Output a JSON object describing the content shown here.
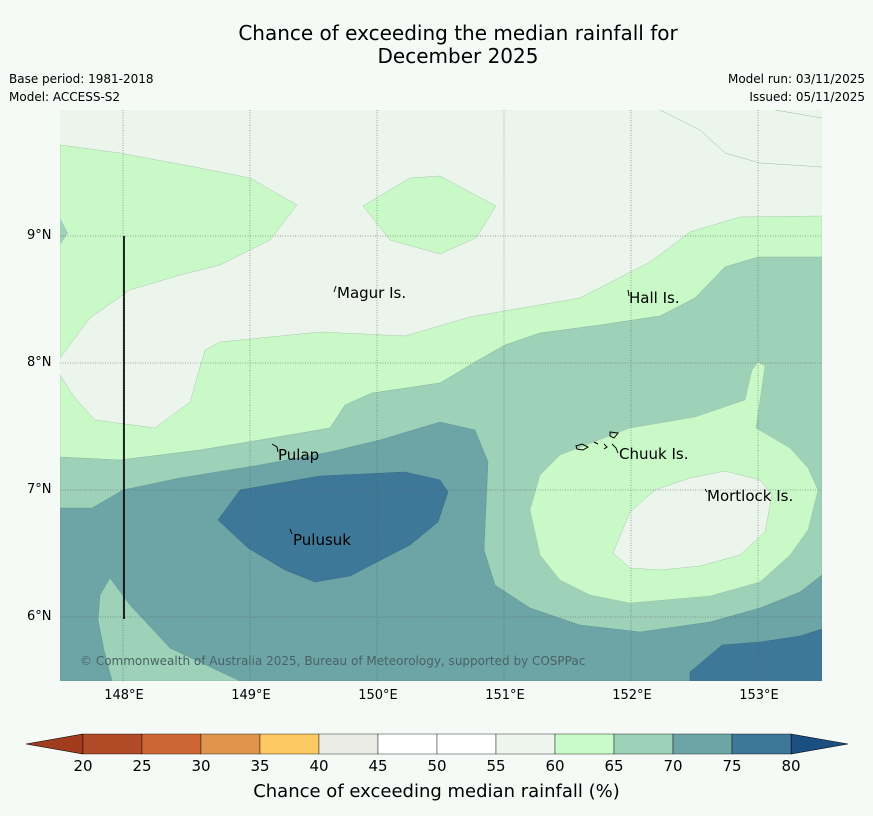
{
  "title_line1": "Chance of exceeding the median rainfall for",
  "title_line2": "December 2025",
  "meta": {
    "base_period": "Base period: 1981-2018",
    "model": "Model: ACCESS-S2",
    "model_run": "Model run: 03/11/2025",
    "issued": "Issued: 05/11/2025"
  },
  "lat_labels": [
    "9°N",
    "8°N",
    "7°N",
    "6°N"
  ],
  "lon_labels": [
    "148°E",
    "149°E",
    "150°E",
    "151°E",
    "152°E",
    "153°E"
  ],
  "places": {
    "magur": "Magur Is.",
    "hall": "Hall Is.",
    "pulap": "Pulap",
    "chuuk": "Chuuk Is.",
    "mortlock": "Mortlock Is.",
    "pulusuk": "Pulusuk"
  },
  "copyright": "© Commonwealth of Australia 2025, Bureau of Meteorology, supported by COSPPac",
  "colorbar": {
    "ticks": [
      "20",
      "25",
      "30",
      "35",
      "40",
      "45",
      "50",
      "55",
      "60",
      "65",
      "70",
      "75",
      "80"
    ],
    "label": "Chance of exceeding median rainfall (%)",
    "colors": [
      "#b04a27",
      "#cd6633",
      "#e0934a",
      "#fdc963",
      "#ebebe6",
      "#ffffff",
      "#ffffff",
      "#edf5ec",
      "#c9fbc8",
      "#9dd1b8",
      "#6da5a6",
      "#3e7898"
    ],
    "under_color": "#a23b1e",
    "over_color": "#1b4f82"
  },
  "colors": {
    "c55_60": "#ebf5eb",
    "c60_65": "#caf9c8",
    "c65_70": "#9dd1b8",
    "c70_75": "#6da5a6",
    "c75_80": "#3e7898",
    "background": "#f5faf6"
  }
}
